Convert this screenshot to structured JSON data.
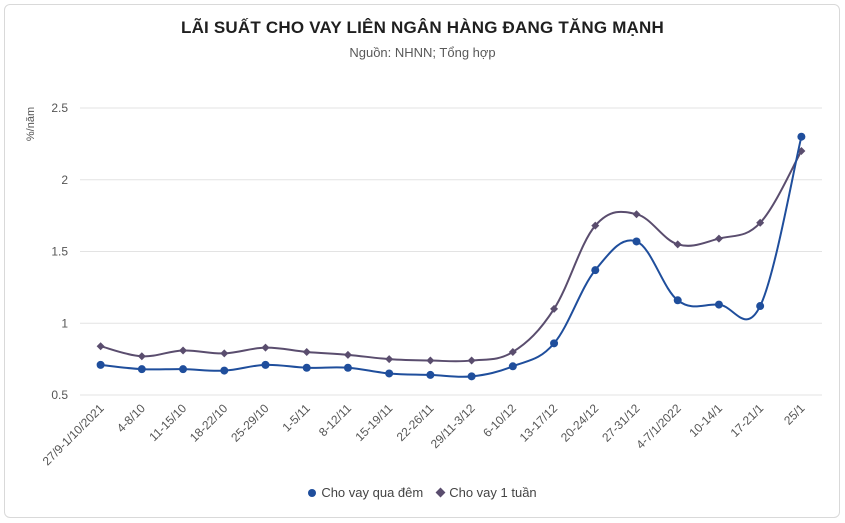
{
  "chart_data": {
    "type": "line",
    "title": "LÃI SUẤT CHO VAY LIÊN NGÂN HÀNG ĐANG TĂNG MẠNH",
    "subtitle": "Nguồn: NHNN; Tổng hợp",
    "ylabel": "%/năm",
    "xlabel": "",
    "ylim": [
      0.5,
      2.5
    ],
    "yticks": [
      "0.5",
      "1",
      "1.5",
      "2",
      "2.5"
    ],
    "grid": true,
    "legend_position": "bottom",
    "categories": [
      "27/9-1/10/2021",
      "4-8/10",
      "11-15/10",
      "18-22/10",
      "25-29/10",
      "1-5/11",
      "8-12/11",
      "15-19/11",
      "22-26/11",
      "29/11-3/12",
      "6-10/12",
      "13-17/12",
      "20-24/12",
      "27-31/12",
      "4-7/1/2022",
      "10-14/1",
      "17-21/1",
      "25/1"
    ],
    "series": [
      {
        "name": "Cho vay qua đêm",
        "color": "#1f4e9c",
        "marker": "circle",
        "values": [
          0.71,
          0.68,
          0.68,
          0.67,
          0.71,
          0.69,
          0.69,
          0.65,
          0.64,
          0.63,
          0.7,
          0.86,
          1.37,
          1.57,
          1.16,
          1.13,
          1.12,
          2.3
        ]
      },
      {
        "name": "Cho vay 1 tuần",
        "color": "#5a4d6e",
        "marker": "diamond",
        "values": [
          0.84,
          0.77,
          0.81,
          0.79,
          0.83,
          0.8,
          0.78,
          0.75,
          0.74,
          0.74,
          0.8,
          1.1,
          1.68,
          1.76,
          1.55,
          1.59,
          1.7,
          2.2
        ]
      }
    ]
  }
}
